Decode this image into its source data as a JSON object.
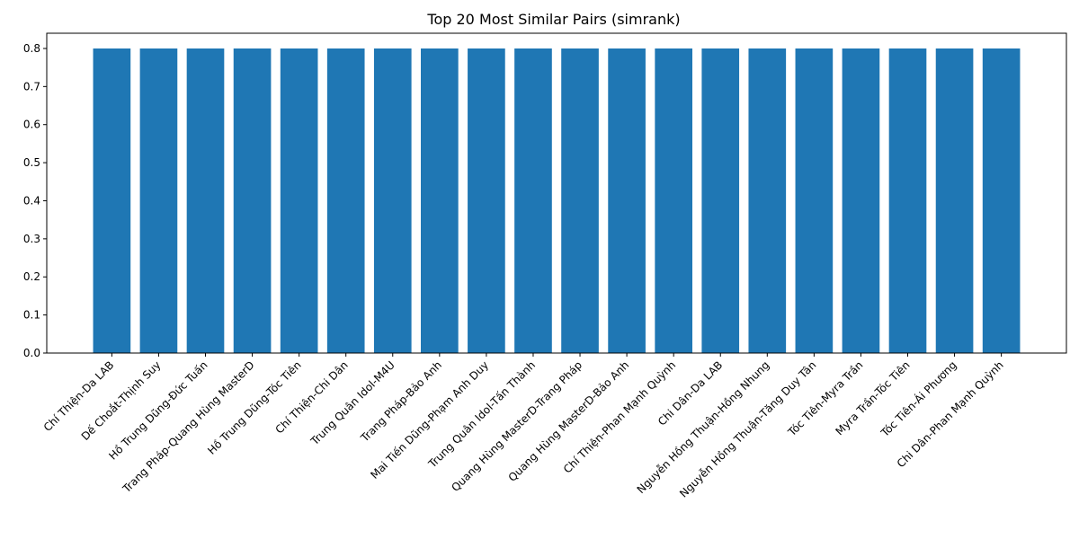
{
  "chart_data": {
    "type": "bar",
    "title": "Top 20 Most Similar Pairs (simrank)",
    "xlabel": "",
    "ylabel": "",
    "ylim": [
      0,
      0.84
    ],
    "yticks": [
      0.0,
      0.1,
      0.2,
      0.3,
      0.4,
      0.5,
      0.6,
      0.7,
      0.8
    ],
    "ytick_labels": [
      "0.0",
      "0.1",
      "0.2",
      "0.3",
      "0.4",
      "0.5",
      "0.6",
      "0.7",
      "0.8"
    ],
    "grid": false,
    "bar_color": "#1f77b4",
    "categories": [
      "Chí Thiện-Da LAB",
      "Dế Choắt-Thịnh Suy",
      "Hồ Trung Dũng-Đức Tuấn",
      "Trang Pháp-Quang Hùng MasterD",
      "Hồ Trung Dũng-Tóc Tiên",
      "Chí Thiện-Chi Dân",
      "Trung Quân Idol-M4U",
      "Trang Pháp-Bảo Anh",
      "Mai Tiến Dũng-Phạm Anh Duy",
      "Trung Quân Idol-Tấn Thành",
      "Quang Hùng MasterD-Trang Pháp",
      "Quang Hùng MasterD-Bảo Anh",
      "Chí Thiện-Phan Mạnh Quỳnh",
      "Chi Dân-Da LAB",
      "Nguyễn Hồng Thuận-Hồng Nhung",
      "Nguyễn Hồng Thuận-Tăng Duy Tân",
      "Tóc Tiên-Myra Trần",
      "Myra Trần-Tóc Tiên",
      "Tóc Tiên-Ái Phương",
      "Chi Dân-Phan Mạnh Quỳnh"
    ],
    "values": [
      0.8,
      0.8,
      0.8,
      0.8,
      0.8,
      0.8,
      0.8,
      0.8,
      0.8,
      0.8,
      0.8,
      0.8,
      0.8,
      0.8,
      0.8,
      0.8,
      0.8,
      0.8,
      0.8,
      0.8
    ]
  }
}
